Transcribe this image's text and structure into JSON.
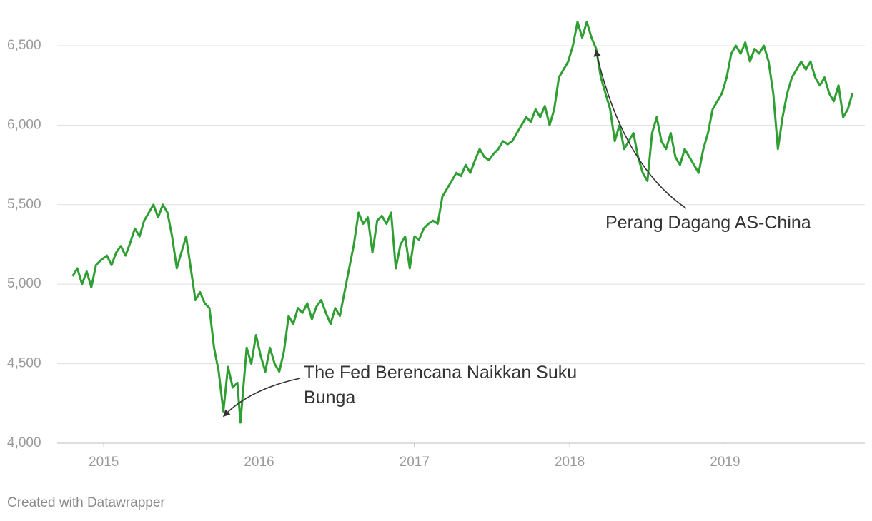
{
  "chart_data": {
    "type": "line",
    "color": "#2f9e33",
    "xlim": [
      2014.7,
      2019.9
    ],
    "xticks": [
      2015,
      2016,
      2017,
      2018,
      2019
    ],
    "ylim": [
      4000,
      6700
    ],
    "yticks": [
      {
        "value": 4000,
        "label": "4,000"
      },
      {
        "value": 4500,
        "label": "4,500"
      },
      {
        "value": 5000,
        "label": "5,000"
      },
      {
        "value": 5500,
        "label": "5,500"
      },
      {
        "value": 6000,
        "label": "6,000"
      },
      {
        "value": 6500,
        "label": "6,500"
      }
    ],
    "grid": true,
    "x": [
      2014.8,
      2014.83,
      2014.86,
      2014.89,
      2014.92,
      2014.95,
      2014.98,
      2015.02,
      2015.05,
      2015.08,
      2015.11,
      2015.14,
      2015.17,
      2015.2,
      2015.23,
      2015.26,
      2015.29,
      2015.32,
      2015.35,
      2015.38,
      2015.41,
      2015.44,
      2015.47,
      2015.5,
      2015.53,
      2015.56,
      2015.59,
      2015.62,
      2015.65,
      2015.68,
      2015.71,
      2015.74,
      2015.77,
      2015.8,
      2015.83,
      2015.86,
      2015.88,
      2015.92,
      2015.95,
      2015.98,
      2016.01,
      2016.04,
      2016.07,
      2016.1,
      2016.13,
      2016.16,
      2016.19,
      2016.22,
      2016.25,
      2016.28,
      2016.31,
      2016.34,
      2016.37,
      2016.4,
      2016.43,
      2016.46,
      2016.49,
      2016.52,
      2016.55,
      2016.58,
      2016.61,
      2016.64,
      2016.67,
      2016.7,
      2016.73,
      2016.76,
      2016.79,
      2016.82,
      2016.85,
      2016.88,
      2016.91,
      2016.94,
      2016.97,
      2017.0,
      2017.03,
      2017.06,
      2017.09,
      2017.12,
      2017.15,
      2017.18,
      2017.21,
      2017.24,
      2017.27,
      2017.3,
      2017.33,
      2017.36,
      2017.39,
      2017.42,
      2017.45,
      2017.48,
      2017.51,
      2017.54,
      2017.57,
      2017.6,
      2017.63,
      2017.66,
      2017.69,
      2017.72,
      2017.75,
      2017.78,
      2017.81,
      2017.84,
      2017.87,
      2017.9,
      2017.93,
      2017.96,
      2017.99,
      2018.02,
      2018.05,
      2018.08,
      2018.11,
      2018.14,
      2018.17,
      2018.2,
      2018.23,
      2018.26,
      2018.29,
      2018.32,
      2018.35,
      2018.38,
      2018.41,
      2018.44,
      2018.47,
      2018.5,
      2018.53,
      2018.56,
      2018.59,
      2018.62,
      2018.65,
      2018.68,
      2018.71,
      2018.74,
      2018.77,
      2018.8,
      2018.83,
      2018.86,
      2018.89,
      2018.92,
      2018.95,
      2018.98,
      2019.01,
      2019.04,
      2019.07,
      2019.1,
      2019.13,
      2019.16,
      2019.19,
      2019.22,
      2019.25,
      2019.28,
      2019.31,
      2019.34,
      2019.37,
      2019.4,
      2019.43,
      2019.46,
      2019.49,
      2019.52,
      2019.55,
      2019.58,
      2019.61,
      2019.64,
      2019.67,
      2019.7,
      2019.73,
      2019.76,
      2019.79,
      2019.82
    ],
    "values": [
      5050,
      5100,
      5000,
      5080,
      4980,
      5120,
      5150,
      5180,
      5120,
      5200,
      5240,
      5180,
      5260,
      5350,
      5300,
      5400,
      5450,
      5500,
      5420,
      5500,
      5450,
      5300,
      5100,
      5200,
      5300,
      5100,
      4900,
      4950,
      4880,
      4850,
      4600,
      4450,
      4200,
      4480,
      4350,
      4380,
      4130,
      4600,
      4500,
      4680,
      4550,
      4450,
      4600,
      4500,
      4450,
      4580,
      4800,
      4750,
      4850,
      4820,
      4880,
      4780,
      4860,
      4900,
      4820,
      4750,
      4850,
      4800,
      4950,
      5100,
      5250,
      5450,
      5380,
      5420,
      5200,
      5400,
      5430,
      5380,
      5450,
      5100,
      5250,
      5300,
      5100,
      5300,
      5280,
      5350,
      5380,
      5400,
      5380,
      5550,
      5600,
      5650,
      5700,
      5680,
      5750,
      5700,
      5780,
      5850,
      5800,
      5780,
      5820,
      5850,
      5900,
      5880,
      5900,
      5950,
      6000,
      6050,
      6020,
      6100,
      6050,
      6120,
      6000,
      6100,
      6300,
      6350,
      6400,
      6500,
      6650,
      6550,
      6650,
      6550,
      6480,
      6300,
      6200,
      6100,
      5900,
      6000,
      5850,
      5900,
      5950,
      5800,
      5700,
      5650,
      5950,
      6050,
      5900,
      5850,
      5950,
      5800,
      5750,
      5850,
      5800,
      5750,
      5700,
      5850,
      5950,
      6100,
      6150,
      6200,
      6300,
      6450,
      6500,
      6450,
      6520,
      6400,
      6480,
      6450,
      6500,
      6400,
      6200,
      5850,
      6050,
      6200,
      6300,
      6350,
      6400,
      6350,
      6400,
      6300,
      6250,
      6300,
      6200,
      6150,
      6250,
      6050,
      6100,
      6200
    ],
    "annotations": [
      {
        "text": "The Fed Berencana Naikkan Suku Bunga"
      },
      {
        "text": "Perang Dagang AS-China"
      }
    ],
    "footer": "Created with Datawrapper"
  }
}
